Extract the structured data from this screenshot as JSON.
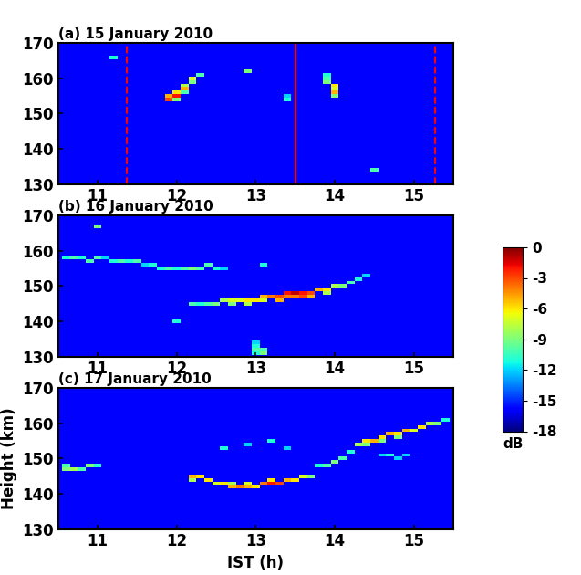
{
  "chart_data": [
    {
      "type": "heatmap",
      "title": "(a) 15 January 2010",
      "color": "jet",
      "xlim": [
        10.5,
        15.5
      ],
      "ylim": [
        130,
        170
      ],
      "xticks": [
        11,
        12,
        13,
        14,
        15
      ],
      "yticks": [
        130,
        140,
        150,
        160,
        170
      ],
      "cell_width": 0.1,
      "cell_height": 1,
      "background": -16,
      "cells": [
        [
          11.9,
          154,
          -3
        ],
        [
          11.9,
          155,
          -5
        ],
        [
          12.0,
          155,
          -2
        ],
        [
          12.0,
          156,
          -6
        ],
        [
          12.1,
          157,
          -5
        ],
        [
          12.1,
          158,
          -8
        ],
        [
          12.2,
          159,
          -9
        ],
        [
          12.2,
          160,
          -7
        ],
        [
          12.3,
          161,
          -10
        ],
        [
          12.0,
          154,
          -9
        ],
        [
          12.1,
          156,
          -10
        ],
        [
          13.4,
          154,
          -11
        ],
        [
          13.4,
          155,
          -12
        ],
        [
          13.9,
          161,
          -11
        ],
        [
          13.9,
          160,
          -10
        ],
        [
          13.9,
          159,
          -9
        ],
        [
          14.0,
          158,
          -6
        ],
        [
          14.0,
          157,
          -7
        ],
        [
          14.0,
          156,
          -5
        ],
        [
          14.0,
          155,
          -9
        ],
        [
          12.9,
          162,
          -9
        ],
        [
          14.5,
          134,
          -10
        ],
        [
          11.2,
          166,
          -11
        ]
      ],
      "vlines": [
        {
          "x": 11.37,
          "line_style": "dashed",
          "color": "#ff0000"
        },
        {
          "x": 13.5,
          "line_style": "solid",
          "color": "#ff0000"
        },
        {
          "x": 15.27,
          "line_style": "dashed",
          "color": "#ff0000"
        }
      ]
    },
    {
      "type": "heatmap",
      "title": "(b) 16 January 2010",
      "color": "jet",
      "xlim": [
        10.5,
        15.5
      ],
      "ylim": [
        130,
        170
      ],
      "xticks": [
        11,
        12,
        13,
        14,
        15
      ],
      "yticks": [
        130,
        140,
        150,
        160,
        170
      ],
      "cell_width": 0.1,
      "cell_height": 1,
      "background": -16,
      "cells": [
        [
          10.6,
          158,
          -11
        ],
        [
          10.7,
          158,
          -10
        ],
        [
          10.8,
          158,
          -11
        ],
        [
          10.9,
          157,
          -10
        ],
        [
          11.0,
          158,
          -10
        ],
        [
          11.1,
          158,
          -12
        ],
        [
          11.2,
          157,
          -11
        ],
        [
          11.3,
          157,
          -10
        ],
        [
          11.4,
          157,
          -11
        ],
        [
          11.5,
          157,
          -10
        ],
        [
          11.6,
          156,
          -12
        ],
        [
          11.7,
          156,
          -11
        ],
        [
          11.8,
          155,
          -11
        ],
        [
          11.9,
          155,
          -10
        ],
        [
          12.0,
          155,
          -11
        ],
        [
          12.1,
          155,
          -10
        ],
        [
          12.2,
          155,
          -9
        ],
        [
          12.3,
          155,
          -10
        ],
        [
          12.4,
          156,
          -10
        ],
        [
          12.5,
          155,
          -11
        ],
        [
          12.6,
          155,
          -12
        ],
        [
          13.1,
          156,
          -11
        ],
        [
          12.2,
          145,
          -10
        ],
        [
          12.3,
          145,
          -11
        ],
        [
          12.4,
          145,
          -10
        ],
        [
          12.5,
          145,
          -9
        ],
        [
          12.6,
          146,
          -8
        ],
        [
          12.7,
          146,
          -7
        ],
        [
          12.8,
          146,
          -7
        ],
        [
          12.9,
          146,
          -6
        ],
        [
          13.0,
          146,
          -6
        ],
        [
          13.1,
          147,
          -5
        ],
        [
          13.2,
          147,
          -4
        ],
        [
          13.3,
          147,
          -3
        ],
        [
          13.4,
          148,
          -2
        ],
        [
          13.5,
          148,
          -1
        ],
        [
          13.6,
          148,
          -2
        ],
        [
          13.7,
          148,
          -3
        ],
        [
          13.8,
          149,
          -5
        ],
        [
          13.9,
          149,
          -6
        ],
        [
          14.0,
          150,
          -8
        ],
        [
          14.1,
          150,
          -9
        ],
        [
          14.2,
          151,
          -10
        ],
        [
          14.3,
          152,
          -11
        ],
        [
          14.4,
          153,
          -12
        ],
        [
          12.7,
          145,
          -9
        ],
        [
          12.9,
          145,
          -8
        ],
        [
          13.1,
          146,
          -7
        ],
        [
          13.3,
          146,
          -5
        ],
        [
          13.4,
          147,
          -4
        ],
        [
          13.5,
          147,
          -4
        ],
        [
          13.6,
          147,
          -3
        ],
        [
          13.7,
          147,
          -5
        ],
        [
          13.9,
          148,
          -8
        ],
        [
          13.0,
          131,
          -11
        ],
        [
          13.0,
          132,
          -10
        ],
        [
          13.0,
          133,
          -11
        ],
        [
          13.0,
          134,
          -12
        ],
        [
          13.1,
          131,
          -9
        ],
        [
          13.1,
          132,
          -10
        ],
        [
          11.0,
          167,
          -9
        ],
        [
          12.0,
          140,
          -11
        ]
      ]
    },
    {
      "type": "heatmap",
      "title": "(c) 17 January 2010",
      "color": "jet",
      "x_label": "IST (h)",
      "y_label": "Height (km)",
      "xlim": [
        10.5,
        15.5
      ],
      "ylim": [
        130,
        170
      ],
      "xticks": [
        11,
        12,
        13,
        14,
        15
      ],
      "yticks": [
        130,
        140,
        150,
        160,
        170
      ],
      "cell_width": 0.1,
      "cell_height": 1,
      "background": -16,
      "colorbar": {
        "range": [
          -18,
          0
        ],
        "ticks": [
          0,
          -3,
          -6,
          -9,
          -12,
          -15,
          -18
        ],
        "label": "dB"
      },
      "cells": [
        [
          10.6,
          147,
          -9
        ],
        [
          10.7,
          147,
          -8
        ],
        [
          10.8,
          147,
          -10
        ],
        [
          10.6,
          148,
          -10
        ],
        [
          10.9,
          148,
          -9
        ],
        [
          11.0,
          148,
          -11
        ],
        [
          12.2,
          145,
          -5
        ],
        [
          12.3,
          145,
          -6
        ],
        [
          12.2,
          144,
          -8
        ],
        [
          12.4,
          144,
          -6
        ],
        [
          12.5,
          143,
          -7
        ],
        [
          12.6,
          143,
          -6
        ],
        [
          12.7,
          142,
          -5
        ],
        [
          12.8,
          142,
          -4
        ],
        [
          12.9,
          142,
          -5
        ],
        [
          13.0,
          142,
          -6
        ],
        [
          13.1,
          143,
          -4
        ],
        [
          13.2,
          143,
          -2
        ],
        [
          13.3,
          143,
          -3
        ],
        [
          13.4,
          144,
          -5
        ],
        [
          13.5,
          144,
          -6
        ],
        [
          13.6,
          145,
          -7
        ],
        [
          13.7,
          145,
          -9
        ],
        [
          12.7,
          143,
          -8
        ],
        [
          12.9,
          143,
          -7
        ],
        [
          13.2,
          144,
          -6
        ],
        [
          13.8,
          148,
          -11
        ],
        [
          13.9,
          148,
          -10
        ],
        [
          14.0,
          149,
          -9
        ],
        [
          14.1,
          150,
          -10
        ],
        [
          14.2,
          152,
          -11
        ],
        [
          14.3,
          154,
          -8
        ],
        [
          14.4,
          155,
          -6
        ],
        [
          14.5,
          155,
          -5
        ],
        [
          14.6,
          156,
          -6
        ],
        [
          14.7,
          157,
          -5
        ],
        [
          14.8,
          157,
          -6
        ],
        [
          14.9,
          158,
          -5
        ],
        [
          15.0,
          158,
          -7
        ],
        [
          15.1,
          159,
          -6
        ],
        [
          15.2,
          160,
          -8
        ],
        [
          15.3,
          160,
          -9
        ],
        [
          15.4,
          161,
          -11
        ],
        [
          14.4,
          154,
          -9
        ],
        [
          14.6,
          155,
          -9
        ],
        [
          14.8,
          156,
          -9
        ],
        [
          14.6,
          151,
          -12
        ],
        [
          14.7,
          151,
          -11
        ],
        [
          14.8,
          150,
          -12
        ],
        [
          14.9,
          151,
          -12
        ],
        [
          12.6,
          153,
          -11
        ],
        [
          12.9,
          154,
          -12
        ],
        [
          13.2,
          155,
          -11
        ],
        [
          13.4,
          153,
          -12
        ]
      ]
    }
  ]
}
